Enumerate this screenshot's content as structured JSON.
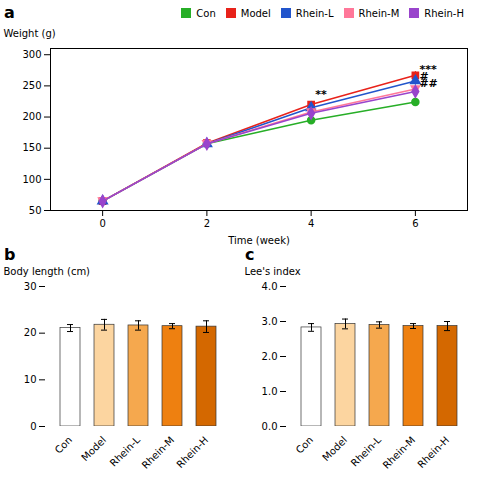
{
  "chart_data": [
    {
      "type": "line",
      "title": "a",
      "xlabel": "Time (week)",
      "ylabel": "Weight (g)",
      "x": [
        0,
        2,
        4,
        6
      ],
      "xlim": [
        -1,
        7
      ],
      "xticks": [
        0,
        2,
        4,
        6
      ],
      "ylim": [
        50,
        310
      ],
      "yticks": [
        50,
        100,
        150,
        200,
        250,
        300
      ],
      "legend": "upper right",
      "series": [
        {
          "name": "Con",
          "color": "#27ae27",
          "marker": "circle",
          "values": [
            65,
            157,
            195,
            224
          ],
          "errors": [
            1.5,
            3,
            5,
            6
          ]
        },
        {
          "name": "Model",
          "color": "#e8221a",
          "marker": "square",
          "values": [
            65,
            158,
            220,
            267
          ],
          "errors": [
            1.5,
            3,
            5,
            6
          ]
        },
        {
          "name": "Rhein-L",
          "color": "#2255cc",
          "marker": "triangle-up",
          "values": [
            65,
            157,
            215,
            258
          ],
          "errors": [
            1.5,
            3,
            5,
            7
          ]
        },
        {
          "name": "Rhein-M",
          "color": "#ff7799",
          "marker": "triangle-down",
          "values": [
            65,
            157,
            208,
            245
          ],
          "errors": [
            1.5,
            3,
            4,
            5
          ]
        },
        {
          "name": "Rhein-H",
          "color": "#9944cc",
          "marker": "diamond",
          "values": [
            65,
            157,
            206,
            241
          ],
          "errors": [
            1.5,
            3,
            4,
            6
          ]
        }
      ],
      "annotations": [
        {
          "text": "**",
          "x": 4,
          "y": 230
        },
        {
          "text": "***",
          "x": 6,
          "y": 271
        },
        {
          "text": "#",
          "x": 6,
          "y": 260
        },
        {
          "text": "##",
          "x": 6,
          "y": 248
        }
      ]
    },
    {
      "type": "bar",
      "title": "b",
      "ylabel": "Body length (cm)",
      "categories": [
        "Con",
        "Model",
        "Rhein-L",
        "Rhein-M",
        "Rhein-H"
      ],
      "values": [
        21.1,
        21.8,
        21.65,
        21.5,
        21.4
      ],
      "errors": [
        0.75,
        1.15,
        1.0,
        0.55,
        1.25
      ],
      "colors": [
        "#ffffff",
        "#fcd5a0",
        "#f5a84e",
        "#ee8010",
        "#d46800"
      ],
      "ylim": [
        0,
        30
      ],
      "yticks": [
        0,
        10,
        20,
        30
      ]
    },
    {
      "type": "bar",
      "title": "c",
      "ylabel": "Lee's index",
      "categories": [
        "Con",
        "Model",
        "Rhein-L",
        "Rhein-M",
        "Rhein-H"
      ],
      "values": [
        2.83,
        2.93,
        2.9,
        2.87,
        2.87
      ],
      "errors": [
        0.11,
        0.14,
        0.09,
        0.07,
        0.13
      ],
      "colors": [
        "#ffffff",
        "#fcd5a0",
        "#f5a84e",
        "#ee8010",
        "#d46800"
      ],
      "ylim": [
        0,
        4
      ],
      "yticks": [
        0,
        1,
        2,
        3,
        4
      ]
    }
  ]
}
